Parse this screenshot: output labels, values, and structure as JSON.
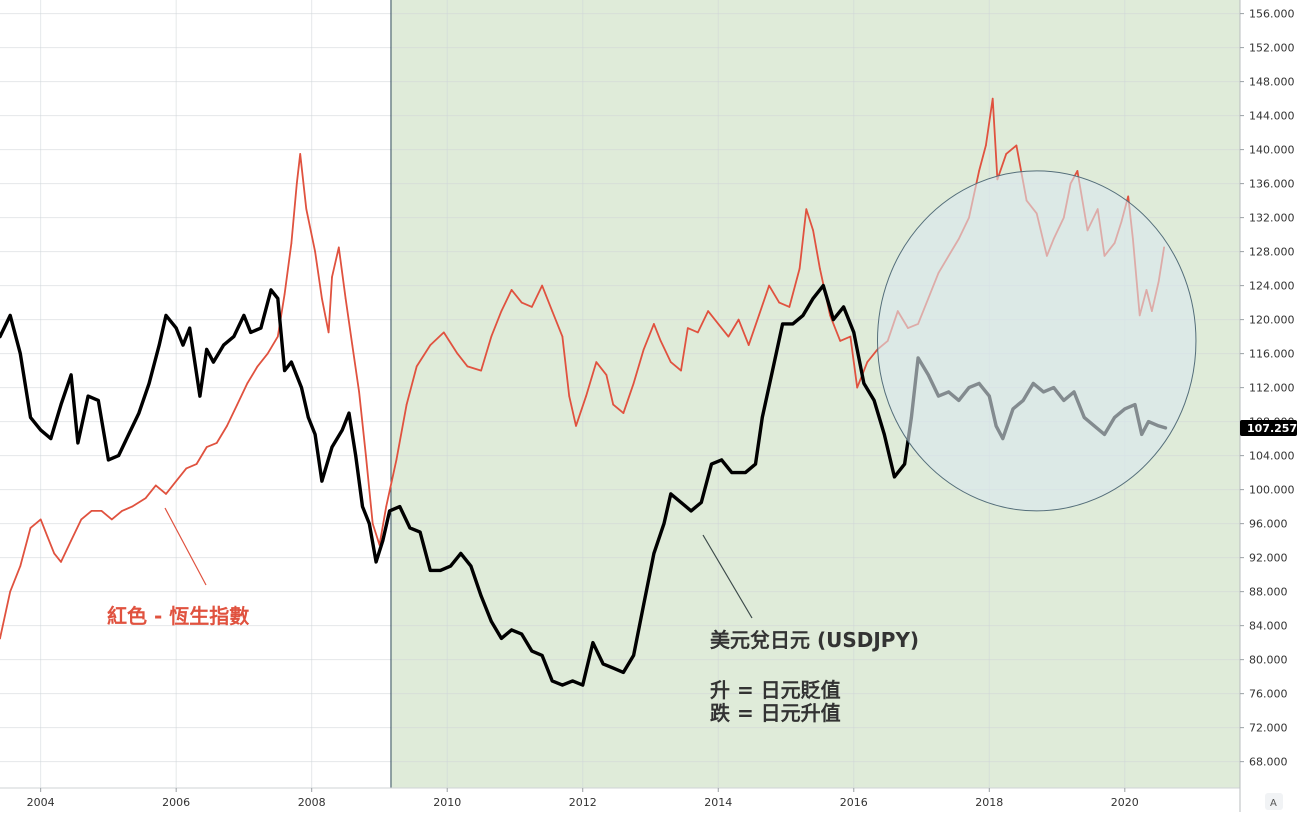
{
  "chart_data": {
    "type": "line",
    "y_axis": {
      "ticks": [
        "156.000",
        "152.000",
        "148.000",
        "144.000",
        "140.000",
        "136.000",
        "132.000",
        "128.000",
        "124.000",
        "120.000",
        "116.000",
        "112.000",
        "108.000",
        "104.000",
        "100.000",
        "96.000",
        "92.000",
        "88.000",
        "84.000",
        "80.000",
        "76.000",
        "72.000",
        "68.000"
      ],
      "ylim": [
        64.9,
        157.6
      ]
    },
    "x_axis": {
      "ticks": [
        "2004",
        "2006",
        "2008",
        "2010",
        "2012",
        "2014",
        "2016",
        "2018",
        "2020"
      ],
      "xlim": [
        2003.4,
        2021.7
      ]
    },
    "current_price_label": "107.257",
    "auto_button": "A",
    "annotations": {
      "red_label": "紅色 - 恆生指數",
      "usdjpy_label": "美元兌日元 (USDJPY)",
      "up_label": "升 = 日元貶值",
      "down_label": "跌 = 日元升值"
    },
    "shaded_period": {
      "start": 2009.17,
      "end": 2021.7,
      "color": "#dfebd9"
    },
    "highlight_ellipse": {
      "center": [
        2018.7,
        117.5
      ],
      "radius_years": 2.35,
      "radius_value": 20.0,
      "fill": "#dbe7ee",
      "stroke": "#546e7a"
    },
    "colors": {
      "usdjpy": "#000000",
      "hsi": "#e0523f",
      "price_label_bg": "#000000"
    },
    "series": [
      {
        "role": "usdjpy",
        "points": [
          [
            2003.4,
            118.0
          ],
          [
            2003.55,
            120.5
          ],
          [
            2003.7,
            116.0
          ],
          [
            2003.85,
            108.5
          ],
          [
            2004.0,
            107.0
          ],
          [
            2004.15,
            106.0
          ],
          [
            2004.3,
            110.0
          ],
          [
            2004.45,
            113.5
          ],
          [
            2004.55,
            105.5
          ],
          [
            2004.7,
            111.0
          ],
          [
            2004.85,
            110.5
          ],
          [
            2005.0,
            103.5
          ],
          [
            2005.15,
            104.0
          ],
          [
            2005.3,
            106.5
          ],
          [
            2005.45,
            109.0
          ],
          [
            2005.6,
            112.5
          ],
          [
            2005.75,
            117.0
          ],
          [
            2005.85,
            120.5
          ],
          [
            2006.0,
            119.0
          ],
          [
            2006.1,
            117.0
          ],
          [
            2006.2,
            119.0
          ],
          [
            2006.35,
            111.0
          ],
          [
            2006.45,
            116.5
          ],
          [
            2006.55,
            115.0
          ],
          [
            2006.7,
            117.0
          ],
          [
            2006.85,
            118.0
          ],
          [
            2007.0,
            120.5
          ],
          [
            2007.1,
            118.5
          ],
          [
            2007.25,
            119.0
          ],
          [
            2007.4,
            123.5
          ],
          [
            2007.5,
            122.5
          ],
          [
            2007.6,
            114.0
          ],
          [
            2007.7,
            115.0
          ],
          [
            2007.85,
            112.0
          ],
          [
            2007.95,
            108.5
          ],
          [
            2008.05,
            106.5
          ],
          [
            2008.15,
            101.0
          ],
          [
            2008.3,
            105.0
          ],
          [
            2008.45,
            107.0
          ],
          [
            2008.55,
            109.0
          ],
          [
            2008.65,
            104.0
          ],
          [
            2008.75,
            98.0
          ],
          [
            2008.85,
            96.0
          ],
          [
            2008.95,
            91.5
          ],
          [
            2009.05,
            94.0
          ],
          [
            2009.15,
            97.5
          ],
          [
            2009.3,
            98.0
          ],
          [
            2009.45,
            95.5
          ],
          [
            2009.6,
            95.0
          ],
          [
            2009.75,
            90.5
          ],
          [
            2009.9,
            90.5
          ],
          [
            2010.05,
            91.0
          ],
          [
            2010.2,
            92.5
          ],
          [
            2010.35,
            91.0
          ],
          [
            2010.5,
            87.5
          ],
          [
            2010.65,
            84.5
          ],
          [
            2010.8,
            82.5
          ],
          [
            2010.95,
            83.5
          ],
          [
            2011.1,
            83.0
          ],
          [
            2011.25,
            81.0
          ],
          [
            2011.4,
            80.5
          ],
          [
            2011.55,
            77.5
          ],
          [
            2011.7,
            77.0
          ],
          [
            2011.85,
            77.5
          ],
          [
            2012.0,
            77.0
          ],
          [
            2012.15,
            82.0
          ],
          [
            2012.3,
            79.5
          ],
          [
            2012.45,
            79.0
          ],
          [
            2012.6,
            78.5
          ],
          [
            2012.75,
            80.5
          ],
          [
            2012.9,
            86.5
          ],
          [
            2013.05,
            92.5
          ],
          [
            2013.2,
            96.0
          ],
          [
            2013.3,
            99.5
          ],
          [
            2013.45,
            98.5
          ],
          [
            2013.6,
            97.5
          ],
          [
            2013.75,
            98.5
          ],
          [
            2013.9,
            103.0
          ],
          [
            2014.05,
            103.5
          ],
          [
            2014.2,
            102.0
          ],
          [
            2014.4,
            102.0
          ],
          [
            2014.55,
            103.0
          ],
          [
            2014.65,
            108.5
          ],
          [
            2014.8,
            114.0
          ],
          [
            2014.95,
            119.5
          ],
          [
            2015.1,
            119.5
          ],
          [
            2015.25,
            120.5
          ],
          [
            2015.4,
            122.5
          ],
          [
            2015.55,
            124.0
          ],
          [
            2015.7,
            120.0
          ],
          [
            2015.85,
            121.5
          ],
          [
            2016.0,
            118.5
          ],
          [
            2016.15,
            112.5
          ],
          [
            2016.3,
            110.5
          ],
          [
            2016.45,
            106.5
          ],
          [
            2016.6,
            101.5
          ],
          [
            2016.75,
            103.0
          ],
          [
            2016.85,
            108.5
          ],
          [
            2016.95,
            115.5
          ],
          [
            2017.1,
            113.5
          ],
          [
            2017.25,
            111.0
          ],
          [
            2017.4,
            111.5
          ],
          [
            2017.55,
            110.5
          ],
          [
            2017.7,
            112.0
          ],
          [
            2017.85,
            112.5
          ],
          [
            2018.0,
            111.0
          ],
          [
            2018.1,
            107.5
          ],
          [
            2018.2,
            106.0
          ],
          [
            2018.35,
            109.5
          ],
          [
            2018.5,
            110.5
          ],
          [
            2018.65,
            112.5
          ],
          [
            2018.8,
            111.5
          ],
          [
            2018.95,
            112.0
          ],
          [
            2019.1,
            110.5
          ],
          [
            2019.25,
            111.5
          ],
          [
            2019.4,
            108.5
          ],
          [
            2019.55,
            107.5
          ],
          [
            2019.7,
            106.5
          ],
          [
            2019.85,
            108.5
          ],
          [
            2020.0,
            109.5
          ],
          [
            2020.15,
            110.0
          ],
          [
            2020.25,
            106.5
          ],
          [
            2020.35,
            108.0
          ],
          [
            2020.5,
            107.5
          ],
          [
            2020.6,
            107.257
          ]
        ]
      },
      {
        "role": "hsi",
        "points": [
          [
            2003.4,
            82.5
          ],
          [
            2003.55,
            88.0
          ],
          [
            2003.7,
            91.0
          ],
          [
            2003.85,
            95.5
          ],
          [
            2004.0,
            96.5
          ],
          [
            2004.1,
            94.5
          ],
          [
            2004.2,
            92.5
          ],
          [
            2004.3,
            91.5
          ],
          [
            2004.45,
            94.0
          ],
          [
            2004.6,
            96.5
          ],
          [
            2004.75,
            97.5
          ],
          [
            2004.9,
            97.5
          ],
          [
            2005.05,
            96.5
          ],
          [
            2005.2,
            97.5
          ],
          [
            2005.35,
            98.0
          ],
          [
            2005.55,
            99.0
          ],
          [
            2005.7,
            100.5
          ],
          [
            2005.85,
            99.5
          ],
          [
            2006.0,
            101.0
          ],
          [
            2006.15,
            102.5
          ],
          [
            2006.3,
            103.0
          ],
          [
            2006.45,
            105.0
          ],
          [
            2006.6,
            105.5
          ],
          [
            2006.75,
            107.5
          ],
          [
            2006.9,
            110.0
          ],
          [
            2007.05,
            112.5
          ],
          [
            2007.2,
            114.5
          ],
          [
            2007.35,
            116.0
          ],
          [
            2007.5,
            118.0
          ],
          [
            2007.6,
            123.0
          ],
          [
            2007.7,
            129.0
          ],
          [
            2007.78,
            136.0
          ],
          [
            2007.83,
            139.5
          ],
          [
            2007.92,
            133.0
          ],
          [
            2008.05,
            128.0
          ],
          [
            2008.15,
            122.5
          ],
          [
            2008.25,
            118.5
          ],
          [
            2008.3,
            125.0
          ],
          [
            2008.4,
            128.5
          ],
          [
            2008.5,
            122.5
          ],
          [
            2008.6,
            117.0
          ],
          [
            2008.7,
            111.5
          ],
          [
            2008.8,
            104.0
          ],
          [
            2008.9,
            96.0
          ],
          [
            2009.0,
            93.5
          ],
          [
            2009.1,
            98.0
          ],
          [
            2009.25,
            103.5
          ],
          [
            2009.4,
            110.0
          ],
          [
            2009.55,
            114.5
          ],
          [
            2009.75,
            117.0
          ],
          [
            2009.95,
            118.5
          ],
          [
            2010.15,
            116.0
          ],
          [
            2010.3,
            114.5
          ],
          [
            2010.5,
            114.0
          ],
          [
            2010.65,
            118.0
          ],
          [
            2010.8,
            121.0
          ],
          [
            2010.95,
            123.5
          ],
          [
            2011.1,
            122.0
          ],
          [
            2011.25,
            121.5
          ],
          [
            2011.4,
            124.0
          ],
          [
            2011.55,
            121.0
          ],
          [
            2011.7,
            118.0
          ],
          [
            2011.8,
            111.0
          ],
          [
            2011.9,
            107.5
          ],
          [
            2012.05,
            111.0
          ],
          [
            2012.2,
            115.0
          ],
          [
            2012.35,
            113.5
          ],
          [
            2012.45,
            110.0
          ],
          [
            2012.6,
            109.0
          ],
          [
            2012.75,
            112.5
          ],
          [
            2012.9,
            116.5
          ],
          [
            2013.05,
            119.5
          ],
          [
            2013.15,
            117.5
          ],
          [
            2013.3,
            115.0
          ],
          [
            2013.45,
            114.0
          ],
          [
            2013.55,
            119.0
          ],
          [
            2013.7,
            118.5
          ],
          [
            2013.85,
            121.0
          ],
          [
            2014.0,
            119.5
          ],
          [
            2014.15,
            118.0
          ],
          [
            2014.3,
            120.0
          ],
          [
            2014.45,
            117.0
          ],
          [
            2014.6,
            120.5
          ],
          [
            2014.75,
            124.0
          ],
          [
            2014.9,
            122.0
          ],
          [
            2015.05,
            121.5
          ],
          [
            2015.2,
            126.0
          ],
          [
            2015.3,
            133.0
          ],
          [
            2015.4,
            130.5
          ],
          [
            2015.5,
            126.0
          ],
          [
            2015.65,
            120.5
          ],
          [
            2015.8,
            117.5
          ],
          [
            2015.95,
            118.0
          ],
          [
            2016.05,
            112.0
          ],
          [
            2016.2,
            115.0
          ],
          [
            2016.35,
            116.5
          ],
          [
            2016.5,
            117.5
          ],
          [
            2016.65,
            121.0
          ],
          [
            2016.8,
            119.0
          ],
          [
            2016.95,
            119.5
          ],
          [
            2017.1,
            122.5
          ],
          [
            2017.25,
            125.5
          ],
          [
            2017.4,
            127.5
          ],
          [
            2017.55,
            129.5
          ],
          [
            2017.7,
            132.0
          ],
          [
            2017.85,
            137.5
          ],
          [
            2017.95,
            140.5
          ],
          [
            2018.05,
            146.0
          ],
          [
            2018.12,
            136.5
          ],
          [
            2018.25,
            139.5
          ],
          [
            2018.4,
            140.5
          ],
          [
            2018.55,
            134.0
          ],
          [
            2018.7,
            132.5
          ],
          [
            2018.85,
            127.5
          ],
          [
            2018.95,
            129.5
          ],
          [
            2019.1,
            132.0
          ],
          [
            2019.2,
            136.0
          ],
          [
            2019.3,
            137.5
          ],
          [
            2019.45,
            130.5
          ],
          [
            2019.6,
            133.0
          ],
          [
            2019.7,
            127.5
          ],
          [
            2019.85,
            129.0
          ],
          [
            2019.95,
            131.5
          ],
          [
            2020.05,
            134.5
          ],
          [
            2020.12,
            129.5
          ],
          [
            2020.22,
            120.5
          ],
          [
            2020.32,
            123.5
          ],
          [
            2020.4,
            121.0
          ],
          [
            2020.5,
            124.5
          ],
          [
            2020.58,
            128.5
          ]
        ]
      }
    ]
  }
}
